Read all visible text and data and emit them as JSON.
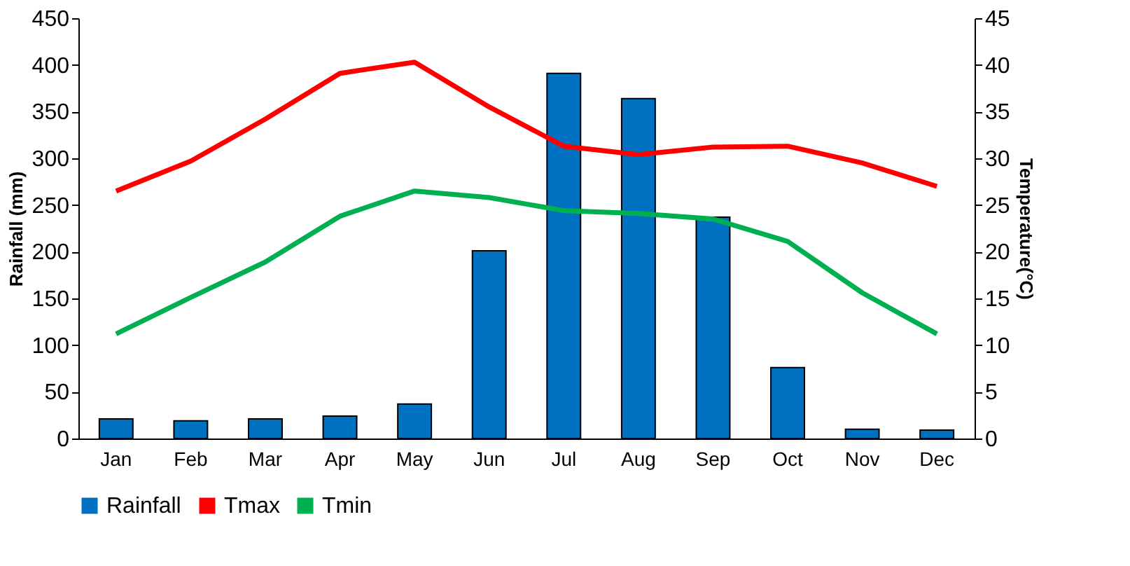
{
  "chart_data": {
    "type": "bar",
    "categories": [
      "Jan",
      "Feb",
      "Mar",
      "Apr",
      "May",
      "Jun",
      "Jul",
      "Aug",
      "Sep",
      "Oct",
      "Nov",
      "Dec"
    ],
    "ylabel": "Rainfall (mm)",
    "y2label": "Temperature(°C)",
    "ylim": [
      0,
      450
    ],
    "yticks": [
      0,
      50,
      100,
      150,
      200,
      250,
      300,
      350,
      400,
      450
    ],
    "y2lim": [
      0,
      45
    ],
    "y2ticks": [
      0,
      5,
      10,
      15,
      20,
      25,
      30,
      35,
      40,
      45
    ],
    "grid": false,
    "legend": "bottom",
    "series": [
      {
        "name": "Rainfall",
        "color": "#0070c0",
        "values": [
          21,
          19,
          21,
          24,
          37,
          201,
          391,
          364,
          237,
          76,
          10,
          9
        ]
      },
      {
        "name": "Tmax",
        "type": "line",
        "axis": "y2",
        "color": "#ff0000",
        "values": [
          26.5,
          29.7,
          34.2,
          39.1,
          40.3,
          35.5,
          31.3,
          30.4,
          31.2,
          31.3,
          29.5,
          27
        ]
      },
      {
        "name": "Tmin",
        "type": "line",
        "axis": "y2",
        "color": "#00b050",
        "values": [
          11.2,
          15.1,
          18.9,
          23.8,
          26.5,
          25.8,
          24.4,
          24.1,
          23.5,
          21.1,
          15.6,
          11.2
        ]
      }
    ]
  }
}
